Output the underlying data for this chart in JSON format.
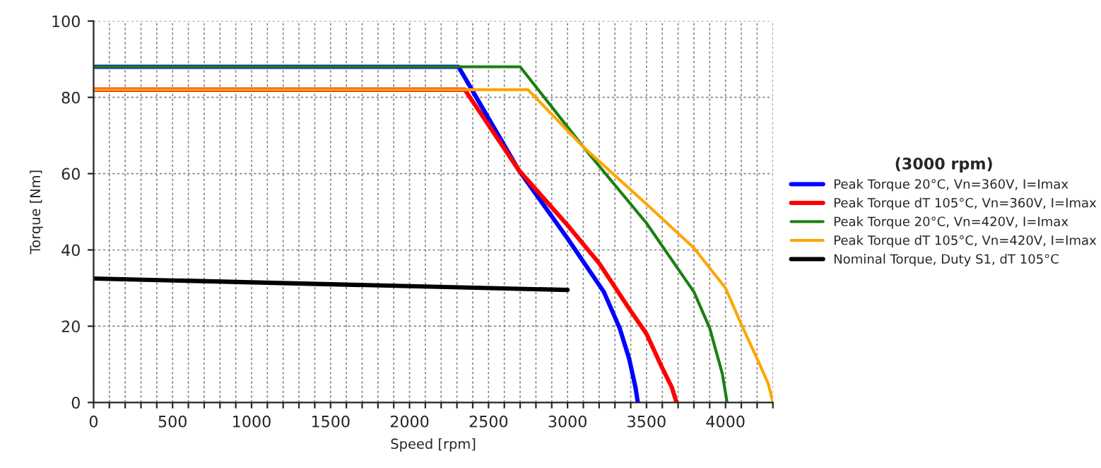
{
  "chart_data": {
    "type": "line",
    "xlabel": "Speed [rpm]",
    "ylabel": "Torque [Nm]",
    "legend_title": "(3000 rpm)",
    "legend": "right",
    "grid": true,
    "xlim": [
      0,
      4300
    ],
    "ylim": [
      0,
      100
    ],
    "xticks": [
      0,
      {
        "value": 100,
        "label": null
      },
      {
        "value": 200,
        "label": null
      },
      {
        "value": 300,
        "label": null
      },
      {
        "value": 400,
        "label": null
      },
      500,
      {
        "value": 600,
        "label": null
      },
      {
        "value": 700,
        "label": null
      },
      {
        "value": 800,
        "label": null
      },
      {
        "value": 900,
        "label": null
      },
      1000,
      {
        "value": 1100,
        "label": null
      },
      {
        "value": 1200,
        "label": null
      },
      {
        "value": 1300,
        "label": null
      },
      {
        "value": 1400,
        "label": null
      },
      1500,
      {
        "value": 1600,
        "label": null
      },
      {
        "value": 1700,
        "label": null
      },
      {
        "value": 1800,
        "label": null
      },
      {
        "value": 1900,
        "label": null
      },
      2000,
      {
        "value": 2100,
        "label": null
      },
      {
        "value": 2200,
        "label": null
      },
      {
        "value": 2300,
        "label": null
      },
      {
        "value": 2400,
        "label": null
      },
      2500,
      {
        "value": 2600,
        "label": null
      },
      {
        "value": 2700,
        "label": null
      },
      {
        "value": 2800,
        "label": null
      },
      {
        "value": 2900,
        "label": null
      },
      3000,
      {
        "value": 3100,
        "label": null
      },
      {
        "value": 3200,
        "label": null
      },
      {
        "value": 3300,
        "label": null
      },
      {
        "value": 3400,
        "label": null
      },
      3500,
      {
        "value": 3600,
        "label": null
      },
      {
        "value": 3700,
        "label": null
      },
      {
        "value": 3800,
        "label": null
      },
      {
        "value": 3900,
        "label": null
      },
      4000,
      {
        "value": 4100,
        "label": null
      },
      {
        "value": 4200,
        "label": null
      },
      {
        "value": 4300,
        "label": null
      }
    ],
    "yticks": [
      0,
      20,
      40,
      60,
      80,
      100
    ],
    "series": [
      {
        "name": "Peak Torque 20°C, Vn=360V, I=Imax",
        "color": "#0000ff",
        "x": [
          0,
          2310,
          2500,
          2690,
          3000,
          3230,
          3330,
          3390,
          3430,
          3445
        ],
        "values": [
          88,
          88,
          74.5,
          61,
          43,
          29,
          19.5,
          11.5,
          4,
          0
        ]
      },
      {
        "name": "Peak Torque dT 105°C, Vn=360V, I=Imax",
        "color": "#ff0000",
        "x": [
          0,
          2350,
          2690,
          3000,
          3200,
          3400,
          3500,
          3600,
          3660,
          3690
        ],
        "values": [
          82,
          82,
          61,
          46.5,
          36.5,
          24,
          18,
          9,
          4,
          0
        ]
      },
      {
        "name": "Peak Torque 20°C, Vn=420V, I=Imax",
        "color": "#1a8010",
        "x": [
          0,
          2700,
          3100,
          3500,
          3800,
          3900,
          3980,
          4010
        ],
        "values": [
          88,
          88,
          67,
          47,
          29,
          19.5,
          7.5,
          0
        ]
      },
      {
        "name": "Peak Torque dT 105°C, Vn=420V, I=Imax",
        "color": "#ffa500",
        "x": [
          0,
          2750,
          3100,
          3500,
          3800,
          4000,
          4100,
          4200,
          4270,
          4300
        ],
        "values": [
          82,
          82,
          67,
          52,
          40.5,
          30,
          20.5,
          11.5,
          5,
          0
        ]
      },
      {
        "name": "Nominal Torque, Duty S1, dT 105°C",
        "color": "#000000",
        "x": [
          0,
          3000
        ],
        "values": [
          32.5,
          29.5
        ]
      }
    ]
  }
}
